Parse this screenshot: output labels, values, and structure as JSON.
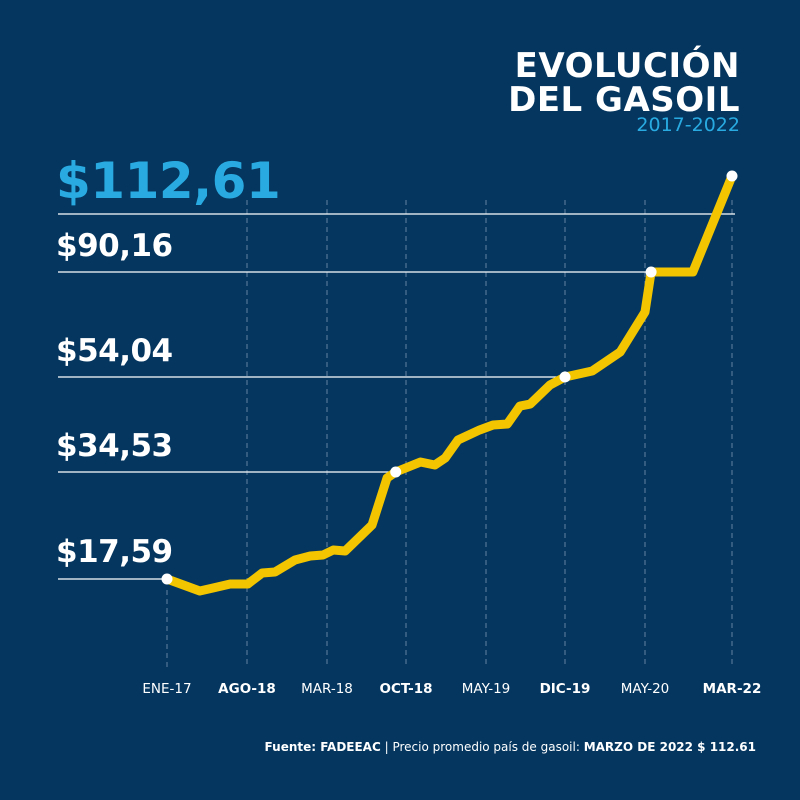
{
  "title_line1": "EVOLUCIÓN",
  "title_line2": "DEL GASOIL",
  "subtitle": "2017-2022",
  "footer": {
    "source_label": "Fuente: FADEEAC",
    "separator": " | ",
    "text": "Precio promedio país de gasoil: ",
    "highlight": "MARZO DE 2022 $ 112.61"
  },
  "colors": {
    "background": "#04365f",
    "line": "#f2c500",
    "accent": "#29abe2",
    "gridline": "#ffffff"
  },
  "chart_data": {
    "type": "line",
    "title": "EVOLUCIÓN DEL GASOIL",
    "subtitle": "2017-2022",
    "categories": [
      "ENE-17",
      "AGO-18",
      "MAR-18",
      "OCT-18",
      "MAY-19",
      "DIC-19",
      "MAY-20",
      "MAR-22"
    ],
    "bold_categories": [
      "AGO-18",
      "OCT-18",
      "DIC-19",
      "MAR-22"
    ],
    "highlight_levels": [
      {
        "label": "$17,59",
        "value": 17.59,
        "category_index": 0
      },
      {
        "label": "$34,53",
        "value": 34.53,
        "category_index": 2.87
      },
      {
        "label": "$54,04",
        "value": 54.04,
        "category_index": 5
      },
      {
        "label": "$90,16",
        "value": 90.16,
        "category_index": 6.07
      },
      {
        "label": "$112,61",
        "value": 112.61,
        "category_index": 7
      }
    ],
    "series": [
      {
        "x": [
          0,
          0.41,
          0.575,
          0.79,
          1.01,
          1.19,
          1.35,
          1.6,
          1.79,
          1.95,
          2.08,
          2.23,
          2.57,
          2.76,
          2.87,
          3.18,
          3.36,
          3.49,
          3.65,
          3.92,
          4.09,
          4.27,
          4.43,
          4.56,
          4.81,
          5,
          5.34,
          5.69,
          6,
          6.07,
          6.55,
          7
        ],
        "values": [
          17.59,
          15.69,
          16.17,
          16.8,
          16.8,
          18.54,
          18.7,
          20.6,
          21.23,
          21.39,
          22.18,
          22.02,
          26.14,
          33.58,
          34.53,
          36.58,
          35.97,
          37.41,
          41.1,
          43.16,
          44.18,
          44.39,
          48.08,
          48.49,
          52.4,
          54.04,
          56.1,
          62.64,
          76.4,
          90.16,
          90.16,
          112.61
        ]
      }
    ],
    "grid": "vertical dashed at categories"
  }
}
